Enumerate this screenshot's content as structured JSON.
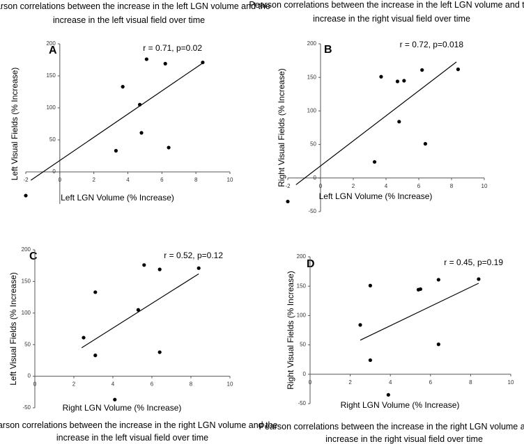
{
  "chart_data": [
    {
      "type": "scatter",
      "panel_label": "A",
      "title": "Pearson correlations between the increase in the left LGN volume and the  increase in the left visual field over time",
      "annotation": "r = 0.71, p=0.02",
      "x_label": "Left LGN Volume (% Increase)",
      "y_label": "Left  Visual  Fields (% Increase)",
      "xlim": [
        -2,
        10
      ],
      "xticks": [
        -2,
        0,
        2,
        4,
        6,
        8,
        10
      ],
      "ylim": [
        -50,
        200
      ],
      "yticks": [
        0,
        50,
        100,
        150,
        200
      ],
      "color": "#000000",
      "x": [
        -2,
        3.3,
        3.7,
        4.7,
        4.8,
        5.1,
        6.2,
        6.4,
        8.4
      ],
      "values": [
        -37,
        33,
        133,
        105,
        61,
        176,
        169,
        38,
        171
      ],
      "trend_line": {
        "x": [
          -1.7,
          8.4
        ],
        "values": [
          -13,
          170
        ]
      }
    },
    {
      "type": "scatter",
      "panel_label": "B",
      "title": "Pearson correlations between the increase in the left LGN volume and the increase in the right visual field over time",
      "annotation": "r = 0.72, p=0.018",
      "x_label": "Left LGN Volume (% Increase)",
      "y_label": "Right Visual  Fields (% Increase)",
      "xlim": [
        -2,
        10
      ],
      "xticks": [
        -2,
        0,
        2,
        4,
        6,
        8,
        10
      ],
      "ylim": [
        -50,
        200
      ],
      "yticks": [
        -50,
        0,
        50,
        100,
        150,
        200
      ],
      "color": "#000000",
      "x": [
        -2,
        3.3,
        3.7,
        4.7,
        4.8,
        5.1,
        6.2,
        6.4,
        8.4
      ],
      "values": [
        -35,
        24,
        151,
        144,
        84,
        145,
        161,
        51,
        162
      ],
      "trend_line": {
        "x": [
          -1.5,
          8.3
        ],
        "values": [
          -10,
          173
        ]
      }
    },
    {
      "type": "scatter",
      "panel_label": "C",
      "title": "Pearson correlations between the increase in the right LGN volume and the increase in the left visual field over time",
      "annotation": "r = 0.52, p=0.12",
      "x_label": "Right LGN Volume (% Increase)",
      "y_label": "Left  Visual  Fields (% Increase)",
      "xlim": [
        0,
        10
      ],
      "xticks": [
        0,
        2,
        4,
        6,
        8,
        10
      ],
      "ylim": [
        -50,
        200
      ],
      "yticks": [
        -50,
        0,
        50,
        100,
        150,
        200
      ],
      "color": "#000000",
      "x": [
        2.5,
        3.1,
        3.1,
        4.1,
        5.3,
        5.6,
        6.4,
        6.4,
        8.4
      ],
      "values": [
        61,
        133,
        33,
        -37,
        105,
        176,
        169,
        38,
        171
      ],
      "trend_line": {
        "x": [
          2.4,
          8.4
        ],
        "values": [
          45,
          162
        ]
      }
    },
    {
      "type": "scatter",
      "panel_label": "D",
      "title": "Pearson correlations between the increase in the right LGN volume and the increase in the right visual field over time",
      "annotation": "r = 0.45, p=0.19",
      "x_label": "Right LGN Volume (% Increase)",
      "y_label": "Right Visual  Fields (% Increase)",
      "xlim": [
        0,
        10
      ],
      "xticks": [
        0,
        2,
        4,
        6,
        8,
        10
      ],
      "ylim": [
        -50,
        200
      ],
      "yticks": [
        -50,
        0,
        50,
        100,
        150,
        200
      ],
      "color": "#000000",
      "x": [
        2.5,
        3.0,
        3.0,
        3.9,
        5.4,
        5.5,
        6.4,
        6.4,
        8.4
      ],
      "values": [
        84,
        151,
        24,
        -35,
        144,
        145,
        161,
        51,
        162
      ],
      "trend_line": {
        "x": [
          2.5,
          8.4
        ],
        "values": [
          58,
          155
        ]
      }
    }
  ]
}
